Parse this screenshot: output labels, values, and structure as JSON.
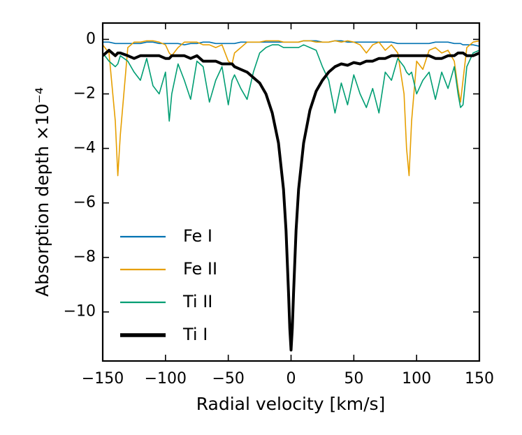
{
  "chart_data": {
    "type": "line",
    "xlabel": "Radial velocity [km/s]",
    "ylabel": "Absorption depth ×10⁻⁴",
    "x": [
      -150,
      -145,
      -140,
      -138,
      -136,
      -130,
      -125,
      -120,
      -115,
      -110,
      -105,
      -100,
      -97,
      -95,
      -90,
      -85,
      -80,
      -75,
      -70,
      -65,
      -60,
      -55,
      -50,
      -47,
      -45,
      -40,
      -35,
      -30,
      -25,
      -20,
      -15,
      -10,
      -6,
      -4,
      -2,
      -1,
      0,
      1,
      2,
      4,
      6,
      10,
      15,
      20,
      25,
      30,
      35,
      40,
      45,
      50,
      55,
      60,
      65,
      70,
      75,
      80,
      85,
      90,
      92,
      94,
      96,
      100,
      105,
      110,
      115,
      120,
      125,
      130,
      133,
      135,
      137,
      140,
      145,
      150
    ],
    "series": [
      {
        "name": "Fe I",
        "color": "#0072b2",
        "linewidth": 1.6,
        "values": [
          -0.1,
          -0.1,
          -0.15,
          -0.15,
          -0.15,
          -0.15,
          -0.15,
          -0.15,
          -0.1,
          -0.1,
          -0.15,
          -0.15,
          -0.15,
          -0.15,
          -0.15,
          -0.2,
          -0.15,
          -0.15,
          -0.1,
          -0.1,
          -0.15,
          -0.15,
          -0.15,
          -0.15,
          -0.15,
          -0.1,
          -0.1,
          -0.1,
          -0.1,
          -0.1,
          -0.1,
          -0.1,
          -0.1,
          -0.1,
          -0.1,
          -0.1,
          -0.1,
          -0.1,
          -0.1,
          -0.1,
          -0.1,
          -0.05,
          -0.05,
          -0.05,
          -0.1,
          -0.1,
          -0.05,
          -0.05,
          -0.1,
          -0.1,
          -0.1,
          -0.1,
          -0.1,
          -0.1,
          -0.1,
          -0.1,
          -0.15,
          -0.15,
          -0.15,
          -0.15,
          -0.15,
          -0.15,
          -0.15,
          -0.15,
          -0.1,
          -0.1,
          -0.1,
          -0.15,
          -0.15,
          -0.15,
          -0.2,
          -0.2,
          -0.2,
          -0.25
        ]
      },
      {
        "name": "Fe II",
        "color": "#e69f00",
        "linewidth": 1.6,
        "values": [
          -0.2,
          -0.5,
          -3.0,
          -5.0,
          -3.5,
          -0.3,
          -0.1,
          -0.1,
          -0.05,
          -0.05,
          -0.1,
          -0.2,
          -0.5,
          -0.6,
          -0.3,
          -0.1,
          -0.1,
          -0.1,
          -0.2,
          -0.2,
          -0.3,
          -0.2,
          -0.8,
          -0.9,
          -0.5,
          -0.3,
          -0.1,
          -0.1,
          -0.1,
          -0.05,
          -0.05,
          -0.05,
          -0.1,
          -0.1,
          -0.1,
          -0.1,
          -0.1,
          -0.1,
          -0.1,
          -0.1,
          -0.1,
          -0.05,
          -0.05,
          -0.1,
          -0.1,
          -0.1,
          -0.05,
          -0.1,
          -0.05,
          -0.1,
          -0.2,
          -0.5,
          -0.2,
          -0.1,
          -0.4,
          -0.2,
          -0.5,
          -2.0,
          -4.0,
          -5.0,
          -3.0,
          -0.8,
          -1.1,
          -0.4,
          -0.3,
          -0.5,
          -0.4,
          -0.8,
          -1.8,
          -2.3,
          -1.5,
          -0.3,
          -0.1,
          -0.05
        ]
      },
      {
        "name": "Ti II",
        "color": "#009e73",
        "linewidth": 1.6,
        "values": [
          -0.5,
          -0.8,
          -1.0,
          -0.9,
          -0.6,
          -0.8,
          -1.2,
          -1.5,
          -0.7,
          -1.7,
          -2.0,
          -1.2,
          -3.0,
          -2.0,
          -0.9,
          -1.5,
          -2.2,
          -0.8,
          -1.0,
          -2.3,
          -1.5,
          -1.0,
          -2.4,
          -1.5,
          -1.3,
          -1.8,
          -2.2,
          -1.2,
          -0.5,
          -0.3,
          -0.2,
          -0.2,
          -0.3,
          -0.3,
          -0.3,
          -0.3,
          -0.3,
          -0.3,
          -0.3,
          -0.3,
          -0.3,
          -0.2,
          -0.3,
          -0.4,
          -1.0,
          -1.5,
          -2.7,
          -1.6,
          -2.4,
          -1.3,
          -2.0,
          -2.5,
          -1.8,
          -2.7,
          -1.2,
          -1.5,
          -0.7,
          -1.0,
          -1.2,
          -1.3,
          -1.2,
          -2.0,
          -1.5,
          -1.2,
          -2.2,
          -1.2,
          -1.8,
          -1.0,
          -2.0,
          -2.5,
          -2.4,
          -1.0,
          -0.5,
          -0.4
        ]
      },
      {
        "name": "Ti I",
        "color": "#000000",
        "linewidth": 4,
        "values": [
          -0.6,
          -0.4,
          -0.6,
          -0.5,
          -0.5,
          -0.6,
          -0.7,
          -0.6,
          -0.6,
          -0.6,
          -0.6,
          -0.7,
          -0.7,
          -0.6,
          -0.6,
          -0.6,
          -0.7,
          -0.6,
          -0.8,
          -0.8,
          -0.8,
          -0.9,
          -0.9,
          -0.9,
          -1.0,
          -1.1,
          -1.2,
          -1.4,
          -1.6,
          -2.0,
          -2.7,
          -3.8,
          -5.5,
          -7.0,
          -9.3,
          -10.6,
          -11.4,
          -10.6,
          -9.3,
          -7.0,
          -5.5,
          -3.8,
          -2.6,
          -1.9,
          -1.5,
          -1.2,
          -1.0,
          -0.9,
          -0.95,
          -0.85,
          -0.9,
          -0.8,
          -0.8,
          -0.7,
          -0.7,
          -0.6,
          -0.6,
          -0.6,
          -0.6,
          -0.6,
          -0.6,
          -0.6,
          -0.6,
          -0.6,
          -0.7,
          -0.7,
          -0.6,
          -0.6,
          -0.5,
          -0.5,
          -0.5,
          -0.6,
          -0.6,
          -0.5
        ]
      }
    ],
    "xlim": [
      -150,
      150
    ],
    "xticks": [
      {
        "value": -150,
        "label": "−150"
      },
      {
        "value": -100,
        "label": "−100"
      },
      {
        "value": -50,
        "label": "−50"
      },
      0,
      50,
      100,
      150
    ],
    "ylim": [
      -11.8,
      0.6
    ],
    "yticks": [
      {
        "value": -10,
        "label": "−10"
      },
      {
        "value": -8,
        "label": "−8"
      },
      {
        "value": -6,
        "label": "−6"
      },
      {
        "value": -4,
        "label": "−4"
      },
      {
        "value": -2,
        "label": "−2"
      },
      0
    ],
    "legend": "lower left",
    "grid": false
  }
}
